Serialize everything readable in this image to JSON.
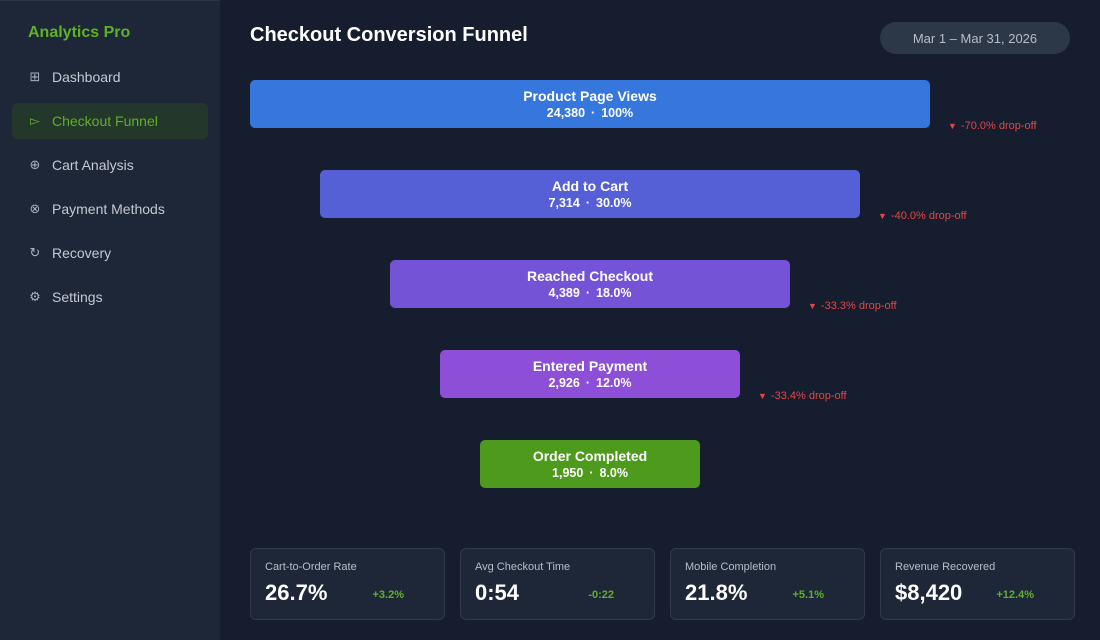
{
  "brand": "Analytics Pro",
  "nav": [
    {
      "label": "Dashboard",
      "icon": "grid-icon",
      "glyph": "⊞",
      "active": false
    },
    {
      "label": "Checkout Funnel",
      "icon": "funnel-icon",
      "glyph": "▻",
      "active": true
    },
    {
      "label": "Cart Analysis",
      "icon": "cart-icon",
      "glyph": "⊕",
      "active": false
    },
    {
      "label": "Payment Methods",
      "icon": "payment-icon",
      "glyph": "⊗",
      "active": false
    },
    {
      "label": "Recovery",
      "icon": "refresh-icon",
      "glyph": "↻",
      "active": false
    },
    {
      "label": "Settings",
      "icon": "gear-icon",
      "glyph": "⚙",
      "active": false
    }
  ],
  "header": {
    "title": "Checkout Conversion Funnel",
    "date_range": "Mar 1 – Mar 31, 2026"
  },
  "funnel": {
    "stages": [
      {
        "label": "Product Page Views",
        "count": "24,380",
        "percent": "100%",
        "color": "#3577dd"
      },
      {
        "label": "Add to Cart",
        "count": "7,314",
        "percent": "30.0%",
        "color": "#5560d6"
      },
      {
        "label": "Reached Checkout",
        "count": "4,389",
        "percent": "18.0%",
        "color": "#7553d6"
      },
      {
        "label": "Entered Payment",
        "count": "2,926",
        "percent": "12.0%",
        "color": "#8e4fd8"
      },
      {
        "label": "Order Completed",
        "count": "1,950",
        "percent": "8.0%",
        "color": "#4d9a1c"
      }
    ],
    "dropoffs": [
      "-70.0% drop-off",
      "-40.0% drop-off",
      "-33.3% drop-off",
      "-33.4% drop-off"
    ],
    "dot": "·",
    "drop_glyph": "▼"
  },
  "cards": [
    {
      "title": "Cart-to-Order Rate",
      "value": "26.7%",
      "delta": "+3.2%"
    },
    {
      "title": "Avg Checkout Time",
      "value": "0:54",
      "delta": "-0:22"
    },
    {
      "title": "Mobile Completion",
      "value": "21.8%",
      "delta": "+5.1%"
    },
    {
      "title": "Revenue Recovered",
      "value": "$8,420",
      "delta": "+12.4%"
    }
  ],
  "colors": {
    "accent": "#5fb12a",
    "drop": "#e04848"
  }
}
